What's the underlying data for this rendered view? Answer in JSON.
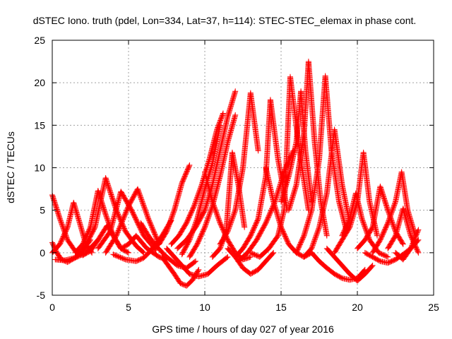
{
  "chart_data": {
    "type": "scatter",
    "title": "dSTEC Iono. truth (pdel, Lon=334, Lat=37, h=114): STEC-STEC_elemax in phase cont.",
    "xlabel": "GPS time / hours of day 027 of year 2016",
    "ylabel": "dSTEC  / TECUs",
    "xlim": [
      0,
      25
    ],
    "ylim": [
      -5,
      25
    ],
    "xticks": [
      0,
      5,
      10,
      15,
      20,
      25
    ],
    "yticks": [
      -5,
      0,
      5,
      10,
      15,
      20,
      25
    ],
    "grid": true,
    "legend": "none",
    "marker": "+",
    "color": "#ff0000",
    "series": [
      {
        "x": [
          0,
          0.5,
          1.0,
          1.5,
          2.0,
          2.5,
          3.0
        ],
        "y": [
          6.8,
          4.0,
          1.5,
          0.2,
          -0.3,
          0.2,
          1.5
        ]
      },
      {
        "x": [
          0,
          0.3,
          0.6,
          1.0,
          1.5,
          2.0,
          2.5
        ],
        "y": [
          1.2,
          0.0,
          -0.8,
          -1.1,
          -0.6,
          0.3,
          1.5
        ]
      },
      {
        "x": [
          0,
          0.5,
          1.0,
          1.4,
          1.8,
          2.2,
          2.6
        ],
        "y": [
          0.0,
          1.0,
          3.0,
          5.9,
          3.5,
          1.0,
          0.0
        ]
      },
      {
        "x": [
          0.2,
          0.8,
          1.5,
          2.2,
          3.0,
          3.6,
          4.0,
          4.5
        ],
        "y": [
          -0.8,
          -0.9,
          -0.6,
          0.0,
          1.5,
          3.2,
          2.0,
          0.5
        ]
      },
      {
        "x": [
          1.5,
          2.0,
          2.5,
          3.0,
          3.5,
          4.0,
          4.5,
          5.0
        ],
        "y": [
          0.0,
          1.0,
          3.0,
          7.3,
          4.5,
          2.0,
          0.5,
          0.0
        ]
      },
      {
        "x": [
          2.0,
          2.8,
          3.5,
          4.2,
          4.8,
          5.5,
          6.0
        ],
        "y": [
          0.2,
          3.0,
          8.8,
          5.0,
          2.5,
          0.8,
          0.0
        ]
      },
      {
        "x": [
          3.0,
          3.8,
          4.5,
          5.2,
          6.0,
          6.8
        ],
        "y": [
          0.5,
          2.5,
          7.2,
          5.0,
          2.0,
          0.3
        ]
      },
      {
        "x": [
          3.5,
          4.2,
          5.0,
          5.6,
          6.3,
          7.0
        ],
        "y": [
          0.0,
          2.0,
          5.5,
          7.5,
          4.0,
          1.0
        ]
      },
      {
        "x": [
          4.5,
          5.0,
          5.5,
          6.2,
          7.0,
          7.5
        ],
        "y": [
          0.5,
          1.0,
          2.0,
          0.5,
          -0.5,
          -0.8
        ]
      },
      {
        "x": [
          4.0,
          4.8,
          5.5,
          6.0,
          6.6,
          7.2,
          7.8
        ],
        "y": [
          -0.2,
          -0.8,
          -1.0,
          -0.6,
          0.5,
          2.0,
          3.8
        ]
      },
      {
        "x": [
          5.8,
          6.3,
          6.8,
          7.5,
          8.2,
          8.8,
          9.4
        ],
        "y": [
          3.5,
          2.0,
          0.8,
          -0.5,
          -1.5,
          -1.8,
          -1.0
        ]
      },
      {
        "x": [
          6.5,
          7.0,
          7.5,
          8.0,
          8.5,
          9.0
        ],
        "y": [
          0.5,
          1.0,
          2.5,
          5.0,
          8.2,
          10.3
        ]
      },
      {
        "x": [
          7.2,
          7.6,
          8.0,
          8.4,
          8.8,
          9.2,
          9.6
        ],
        "y": [
          -0.5,
          -1.5,
          -2.5,
          -3.6,
          -3.9,
          -3.2,
          -2.0
        ]
      },
      {
        "x": [
          7.5,
          8.0,
          8.5,
          9.0,
          9.6,
          10.2,
          10.8,
          11.5
        ],
        "y": [
          0.5,
          -0.5,
          -1.5,
          -2.5,
          -2.8,
          -2.5,
          -1.5,
          -0.5
        ]
      },
      {
        "x": [
          7.8,
          8.3,
          8.8,
          9.3,
          9.8,
          10.3,
          10.8,
          11.2
        ],
        "y": [
          1.0,
          2.0,
          3.5,
          5.5,
          8.0,
          11.0,
          14.5,
          16.4
        ]
      },
      {
        "x": [
          8.2,
          8.8,
          9.4,
          10.0,
          10.5,
          11.0,
          11.5,
          12.0
        ],
        "y": [
          0.5,
          1.5,
          3.0,
          5.0,
          8.0,
          12.0,
          16.0,
          19.0
        ]
      },
      {
        "x": [
          9.0,
          9.5,
          10.0,
          10.5,
          11.0,
          11.5,
          12.0
        ],
        "y": [
          -0.5,
          1.0,
          3.0,
          5.5,
          9.0,
          13.0,
          16.2
        ]
      },
      {
        "x": [
          8.5,
          9.0,
          9.5,
          10.0,
          10.5,
          11.0
        ],
        "y": [
          -0.2,
          1.5,
          4.0,
          7.5,
          10.5,
          15.0
        ]
      },
      {
        "x": [
          10.0,
          10.5,
          11.0,
          11.5,
          12.0,
          12.5,
          13.0
        ],
        "y": [
          9.5,
          6.0,
          3.5,
          1.5,
          0.0,
          -0.8,
          -0.5
        ]
      },
      {
        "x": [
          10.5,
          11.0,
          11.4,
          11.8,
          12.2,
          12.6
        ],
        "y": [
          -0.5,
          0.5,
          2.5,
          11.8,
          8.0,
          3.0
        ]
      },
      {
        "x": [
          11.0,
          11.5,
          12.0,
          12.5,
          13.0,
          13.5
        ],
        "y": [
          1.0,
          2.5,
          5.0,
          10.0,
          18.8,
          12.0
        ]
      },
      {
        "x": [
          11.5,
          12.0,
          12.5,
          13.0,
          13.5,
          14.0,
          14.5
        ],
        "y": [
          0.5,
          -0.5,
          -1.8,
          -2.5,
          -2.0,
          -1.0,
          0.0
        ]
      },
      {
        "x": [
          12.0,
          12.5,
          13.0,
          13.5,
          14.0,
          14.3,
          14.8,
          15.4
        ],
        "y": [
          -0.5,
          0.5,
          2.0,
          4.0,
          9.0,
          18.0,
          11.0,
          5.0
        ]
      },
      {
        "x": [
          12.2,
          12.8,
          13.4,
          14.0,
          14.6,
          15.2,
          15.8
        ],
        "y": [
          -1.0,
          0.0,
          1.5,
          3.5,
          6.0,
          9.5,
          12.0
        ]
      },
      {
        "x": [
          13.0,
          13.6,
          14.2,
          14.8,
          15.2,
          15.6,
          16.2,
          16.8
        ],
        "y": [
          0.0,
          -0.5,
          0.5,
          2.0,
          5.0,
          20.7,
          12.0,
          5.0
        ]
      },
      {
        "x": [
          14.0,
          14.5,
          15.0,
          15.5,
          16.0,
          16.5,
          17.0
        ],
        "y": [
          10.0,
          6.0,
          3.0,
          1.0,
          0.0,
          -0.5,
          0.0
        ]
      },
      {
        "x": [
          15.5,
          16.0,
          16.5,
          16.8,
          17.2,
          17.6,
          18.0
        ],
        "y": [
          5.0,
          8.0,
          14.0,
          22.5,
          13.0,
          6.0,
          2.0
        ]
      },
      {
        "x": [
          15.0,
          15.5,
          16.0,
          16.3,
          16.6,
          17.0
        ],
        "y": [
          6.0,
          9.0,
          13.0,
          19.0,
          12.0,
          6.0
        ]
      },
      {
        "x": [
          16.0,
          16.5,
          17.0,
          17.5,
          17.9,
          18.3,
          18.8,
          19.3
        ],
        "y": [
          0.0,
          2.0,
          5.0,
          11.0,
          20.8,
          12.0,
          6.0,
          2.5
        ]
      },
      {
        "x": [
          16.5,
          17.0,
          17.5,
          18.0,
          18.5,
          19.0,
          19.5
        ],
        "y": [
          -0.5,
          0.5,
          3.0,
          7.0,
          14.5,
          8.0,
          3.5
        ]
      },
      {
        "x": [
          17.0,
          17.5,
          18.0,
          18.5,
          19.0,
          19.5,
          20.0,
          20.5
        ],
        "y": [
          0.0,
          -1.0,
          -1.8,
          -2.5,
          -3.0,
          -3.2,
          -3.0,
          -2.0
        ]
      },
      {
        "x": [
          18.0,
          18.5,
          19.0,
          19.5,
          20.0,
          20.5,
          21.0
        ],
        "y": [
          0.5,
          -0.5,
          -1.5,
          -2.5,
          -3.3,
          -2.5,
          -1.5
        ]
      },
      {
        "x": [
          18.5,
          19.0,
          19.5,
          20.0,
          20.4,
          20.8,
          21.3
        ],
        "y": [
          0.0,
          1.5,
          3.0,
          6.0,
          11.8,
          6.0,
          2.0
        ]
      },
      {
        "x": [
          19.0,
          19.5,
          19.9,
          20.3,
          20.8,
          21.4,
          22.0
        ],
        "y": [
          2.0,
          4.0,
          7.0,
          4.0,
          1.5,
          0.0,
          -0.5
        ]
      },
      {
        "x": [
          20.0,
          20.5,
          21.0,
          21.5,
          22.0,
          22.5,
          23.0
        ],
        "y": [
          0.5,
          1.5,
          3.0,
          7.8,
          5.0,
          2.5,
          1.0
        ]
      },
      {
        "x": [
          20.5,
          21.0,
          21.5,
          22.0,
          22.5,
          23.0,
          23.5,
          24.0
        ],
        "y": [
          0.0,
          -0.5,
          -1.0,
          -1.2,
          -0.8,
          -0.2,
          0.5,
          1.5
        ]
      },
      {
        "x": [
          21.0,
          21.5,
          22.0,
          22.5,
          22.9,
          23.3,
          23.8
        ],
        "y": [
          0.0,
          1.5,
          3.5,
          6.0,
          9.5,
          5.0,
          2.0
        ]
      },
      {
        "x": [
          22.0,
          22.5,
          23.0,
          23.5,
          24.0
        ],
        "y": [
          0.5,
          2.0,
          5.2,
          2.0,
          0.0
        ]
      },
      {
        "x": [
          22.5,
          23.0,
          23.5,
          24.0
        ],
        "y": [
          0.0,
          -0.8,
          0.5,
          2.7
        ]
      }
    ]
  }
}
